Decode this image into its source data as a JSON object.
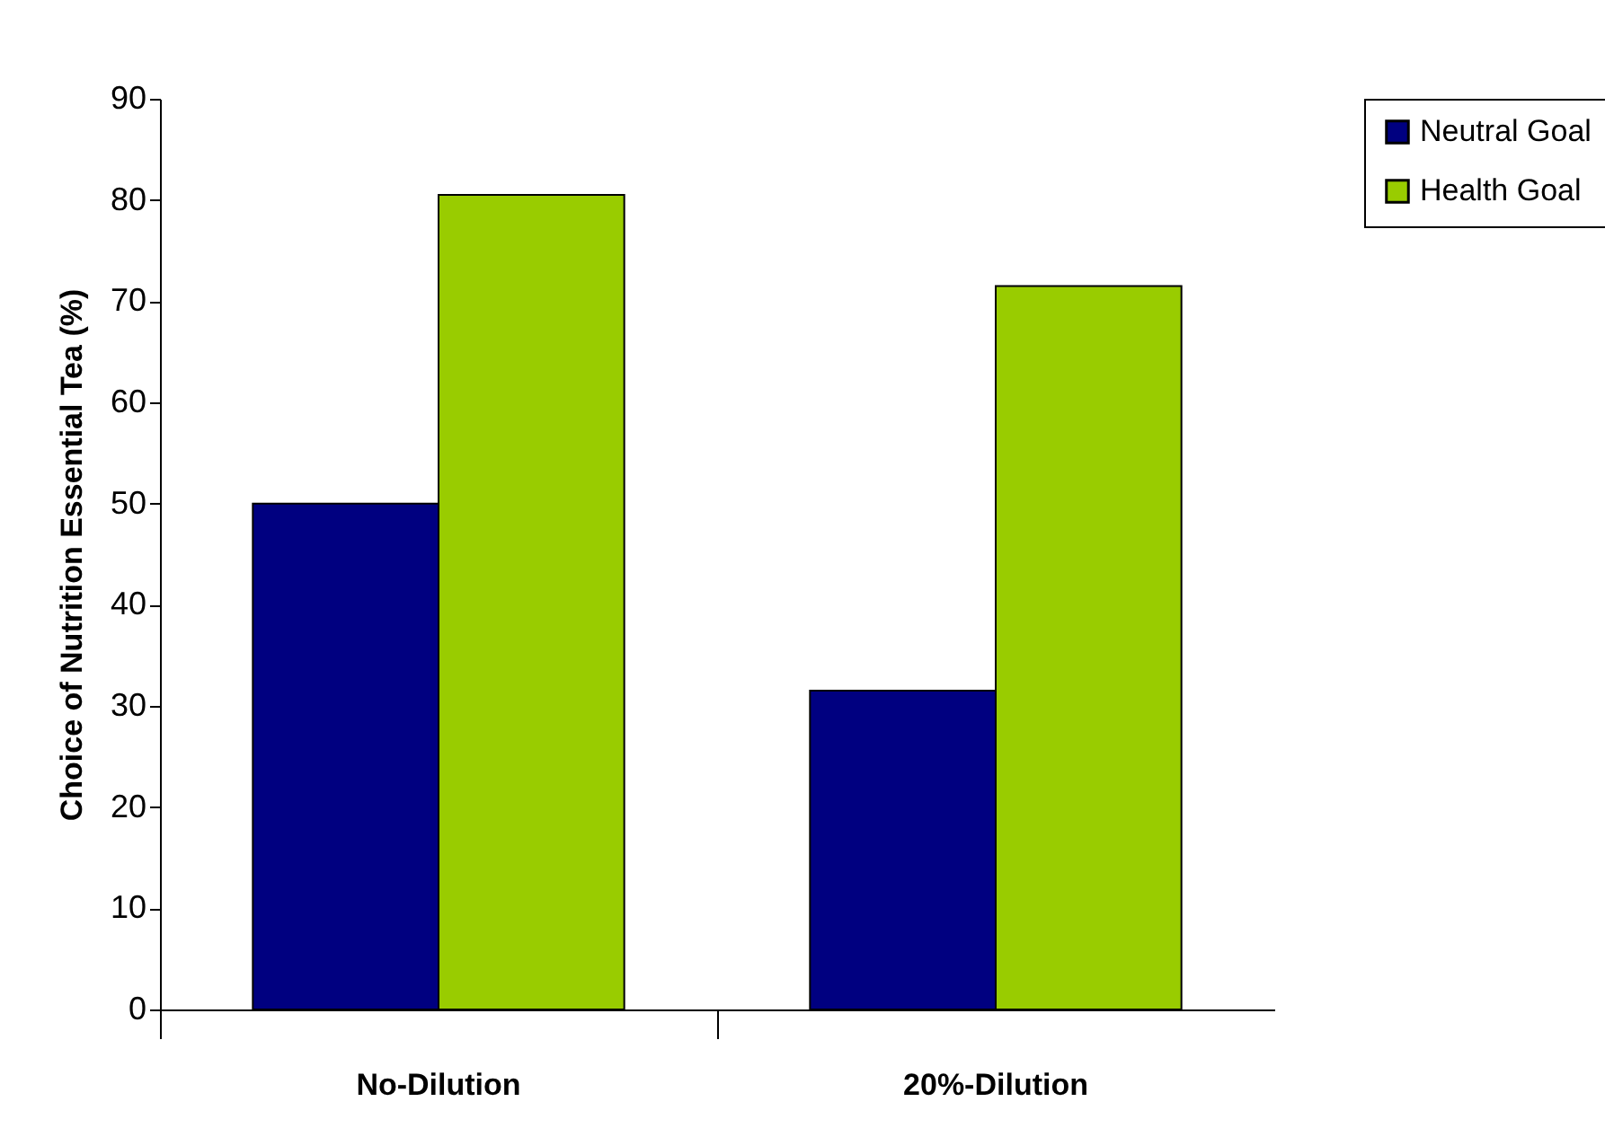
{
  "chart_data": {
    "type": "bar",
    "ylabel": "Choice of Nutrition Essential Tea (%)",
    "categories": [
      "No-Dilution",
      "20%-Dilution"
    ],
    "series": [
      {
        "name": "Neutral Goal",
        "color": "#000080",
        "values": [
          50,
          31.5
        ]
      },
      {
        "name": "Health Goal",
        "color": "#99cc00",
        "values": [
          80.5,
          71.5
        ]
      }
    ],
    "ylim": [
      0,
      90
    ],
    "yticks": [
      0,
      10,
      20,
      30,
      40,
      50,
      60,
      70,
      80,
      90
    ],
    "grid": false,
    "legend": "right"
  }
}
